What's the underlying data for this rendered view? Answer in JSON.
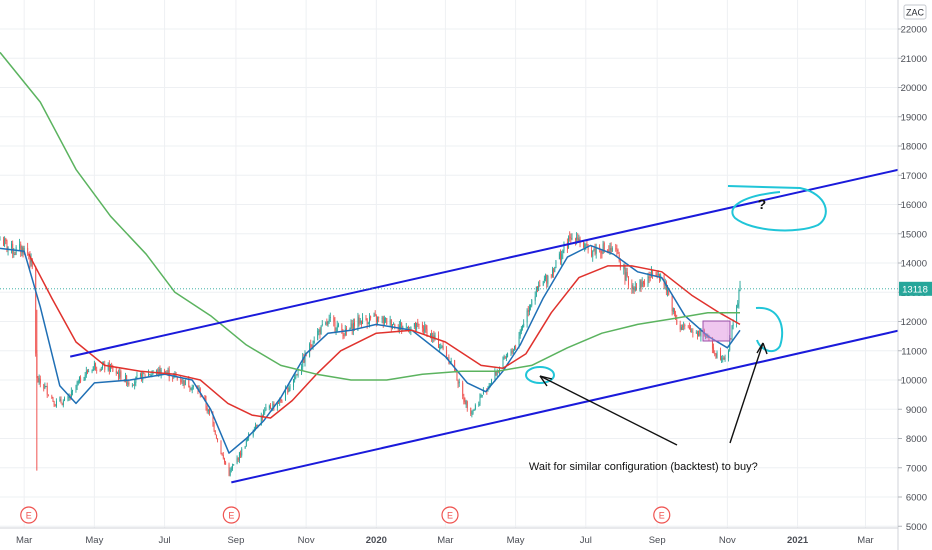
{
  "chart_data": {
    "type": "candlestick",
    "currency_badge": "ZAC",
    "last_price": 13118,
    "last_price_label": "13118",
    "ylim": [
      5000,
      23000
    ],
    "y_ticks": [
      5000,
      6000,
      7000,
      8000,
      9000,
      10000,
      11000,
      12000,
      13000,
      14000,
      15000,
      16000,
      17000,
      18000,
      19000,
      20000,
      21000,
      22000
    ],
    "x_ticks": [
      {
        "label": "Mar",
        "date": "2019-03-01",
        "bold": false
      },
      {
        "label": "May",
        "date": "2019-05-01",
        "bold": false
      },
      {
        "label": "Jul",
        "date": "2019-07-01",
        "bold": false
      },
      {
        "label": "Sep",
        "date": "2019-09-01",
        "bold": false
      },
      {
        "label": "Nov",
        "date": "2019-11-01",
        "bold": false
      },
      {
        "label": "2020",
        "date": "2020-01-01",
        "bold": true
      },
      {
        "label": "Mar",
        "date": "2020-03-01",
        "bold": false
      },
      {
        "label": "May",
        "date": "2020-05-01",
        "bold": false
      },
      {
        "label": "Jul",
        "date": "2020-07-01",
        "bold": false
      },
      {
        "label": "Sep",
        "date": "2020-09-01",
        "bold": false
      },
      {
        "label": "Nov",
        "date": "2020-11-01",
        "bold": false
      },
      {
        "label": "2021",
        "date": "2021-01-01",
        "bold": true
      },
      {
        "label": "Mar",
        "date": "2021-03-01",
        "bold": false
      }
    ],
    "price_path": [
      [
        "2019-02-08",
        14800
      ],
      [
        "2019-02-20",
        14400
      ],
      [
        "2019-02-28",
        14500
      ],
      [
        "2019-03-05",
        14300
      ],
      [
        "2019-03-08",
        13800
      ],
      [
        "2019-03-12",
        10000
      ],
      [
        "2019-03-20",
        9700
      ],
      [
        "2019-03-28",
        9200
      ],
      [
        "2019-04-08",
        9300
      ],
      [
        "2019-04-20",
        10100
      ],
      [
        "2019-05-01",
        10500
      ],
      [
        "2019-05-15",
        10400
      ],
      [
        "2019-06-01",
        9900
      ],
      [
        "2019-06-15",
        10200
      ],
      [
        "2019-07-01",
        10300
      ],
      [
        "2019-07-15",
        10000
      ],
      [
        "2019-08-01",
        9600
      ],
      [
        "2019-08-12",
        8500
      ],
      [
        "2019-08-20",
        7400
      ],
      [
        "2019-08-26",
        6800
      ],
      [
        "2019-09-05",
        7500
      ],
      [
        "2019-09-15",
        8300
      ],
      [
        "2019-09-28",
        9000
      ],
      [
        "2019-10-10",
        9300
      ],
      [
        "2019-10-25",
        10300
      ],
      [
        "2019-11-10",
        11600
      ],
      [
        "2019-11-22",
        12000
      ],
      [
        "2019-12-05",
        11600
      ],
      [
        "2019-12-15",
        12000
      ],
      [
        "2019-12-28",
        12100
      ],
      [
        "2020-01-10",
        12000
      ],
      [
        "2020-01-25",
        11800
      ],
      [
        "2020-02-10",
        11800
      ],
      [
        "2020-02-25",
        11200
      ],
      [
        "2020-03-08",
        10500
      ],
      [
        "2020-03-16",
        9400
      ],
      [
        "2020-03-24",
        8900
      ],
      [
        "2020-04-05",
        9700
      ],
      [
        "2020-04-20",
        10600
      ],
      [
        "2020-05-01",
        11200
      ],
      [
        "2020-05-15",
        12800
      ],
      [
        "2020-06-01",
        13700
      ],
      [
        "2020-06-12",
        14500
      ],
      [
        "2020-06-22",
        15000
      ],
      [
        "2020-07-02",
        14400
      ],
      [
        "2020-07-15",
        14500
      ],
      [
        "2020-07-28",
        14300
      ],
      [
        "2020-08-08",
        13200
      ],
      [
        "2020-08-20",
        13300
      ],
      [
        "2020-09-01",
        13800
      ],
      [
        "2020-09-10",
        13000
      ],
      [
        "2020-09-20",
        11800
      ],
      [
        "2020-10-01",
        11700
      ],
      [
        "2020-10-12",
        11600
      ],
      [
        "2020-10-22",
        10900
      ],
      [
        "2020-11-01",
        10800
      ],
      [
        "2020-11-06",
        12000
      ],
      [
        "2020-11-12",
        13100
      ]
    ],
    "series": [
      {
        "color": "#1f6fb5",
        "values": [
          [
            "2019-02-08",
            14500
          ],
          [
            "2019-03-01",
            14400
          ],
          [
            "2019-03-15",
            12500
          ],
          [
            "2019-04-01",
            9800
          ],
          [
            "2019-04-15",
            9200
          ],
          [
            "2019-05-01",
            9900
          ],
          [
            "2019-06-01",
            10000
          ],
          [
            "2019-07-01",
            10200
          ],
          [
            "2019-07-25",
            10000
          ],
          [
            "2019-08-10",
            9000
          ],
          [
            "2019-08-26",
            7500
          ],
          [
            "2019-09-10",
            8000
          ],
          [
            "2019-09-25",
            8600
          ],
          [
            "2019-10-10",
            9400
          ],
          [
            "2019-11-01",
            10900
          ],
          [
            "2019-11-20",
            11600
          ],
          [
            "2019-12-10",
            11700
          ],
          [
            "2020-01-01",
            11900
          ],
          [
            "2020-02-01",
            11700
          ],
          [
            "2020-03-01",
            10800
          ],
          [
            "2020-03-20",
            9900
          ],
          [
            "2020-04-05",
            9600
          ],
          [
            "2020-04-20",
            10300
          ],
          [
            "2020-05-05",
            11200
          ],
          [
            "2020-05-25",
            12800
          ],
          [
            "2020-06-15",
            14200
          ],
          [
            "2020-07-05",
            14600
          ],
          [
            "2020-07-25",
            14300
          ],
          [
            "2020-08-15",
            13700
          ],
          [
            "2020-09-05",
            13500
          ],
          [
            "2020-09-25",
            12200
          ],
          [
            "2020-10-15",
            11500
          ],
          [
            "2020-11-01",
            11100
          ],
          [
            "2020-11-12",
            11700
          ]
        ]
      },
      {
        "color": "#e0322d",
        "values": [
          [
            "2019-03-05",
            14300
          ],
          [
            "2019-03-25",
            12800
          ],
          [
            "2019-04-15",
            11300
          ],
          [
            "2019-05-10",
            10500
          ],
          [
            "2019-06-10",
            10300
          ],
          [
            "2019-07-10",
            10200
          ],
          [
            "2019-08-01",
            10000
          ],
          [
            "2019-08-25",
            9200
          ],
          [
            "2019-09-15",
            8800
          ],
          [
            "2019-10-01",
            8700
          ],
          [
            "2019-10-20",
            9300
          ],
          [
            "2019-11-10",
            10200
          ],
          [
            "2019-12-01",
            11000
          ],
          [
            "2020-01-01",
            11600
          ],
          [
            "2020-02-01",
            11700
          ],
          [
            "2020-03-01",
            11300
          ],
          [
            "2020-04-01",
            10500
          ],
          [
            "2020-04-20",
            10400
          ],
          [
            "2020-05-10",
            10900
          ],
          [
            "2020-06-01",
            12300
          ],
          [
            "2020-06-25",
            13500
          ],
          [
            "2020-07-20",
            13900
          ],
          [
            "2020-08-10",
            13900
          ],
          [
            "2020-09-05",
            13700
          ],
          [
            "2020-10-01",
            12900
          ],
          [
            "2020-10-25",
            12300
          ],
          [
            "2020-11-12",
            11900
          ]
        ]
      },
      {
        "color": "#5bb35f",
        "values": [
          [
            "2019-02-08",
            21200
          ],
          [
            "2019-03-15",
            19500
          ],
          [
            "2019-04-15",
            17200
          ],
          [
            "2019-05-15",
            15600
          ],
          [
            "2019-06-15",
            14300
          ],
          [
            "2019-07-10",
            13000
          ],
          [
            "2019-08-10",
            12200
          ],
          [
            "2019-09-10",
            11200
          ],
          [
            "2019-10-10",
            10500
          ],
          [
            "2019-11-10",
            10200
          ],
          [
            "2019-12-10",
            10000
          ],
          [
            "2020-01-10",
            10000
          ],
          [
            "2020-02-10",
            10200
          ],
          [
            "2020-03-15",
            10300
          ],
          [
            "2020-04-15",
            10300
          ],
          [
            "2020-05-15",
            10500
          ],
          [
            "2020-06-15",
            11100
          ],
          [
            "2020-07-15",
            11600
          ],
          [
            "2020-08-15",
            11900
          ],
          [
            "2020-09-15",
            12100
          ],
          [
            "2020-10-15",
            12300
          ],
          [
            "2020-11-12",
            12300
          ]
        ]
      }
    ],
    "channel_lines": [
      {
        "color": "#1a1adb",
        "points": [
          [
            "2019-04-10",
            10800
          ],
          [
            "2021-03-31",
            17200
          ]
        ]
      },
      {
        "color": "#1a1adb",
        "points": [
          [
            "2019-08-28",
            6500
          ],
          [
            "2021-03-31",
            11700
          ]
        ]
      }
    ],
    "earnings_markers": [
      {
        "label": "E",
        "date": "2019-03-05"
      },
      {
        "label": "E",
        "date": "2019-08-28"
      },
      {
        "label": "E",
        "date": "2020-03-05"
      },
      {
        "label": "E",
        "date": "2020-09-05"
      }
    ],
    "annotations": [
      {
        "text": "?",
        "date": "2020-12-01",
        "y": 15850
      },
      {
        "text": "Wait for similar configuration (backtest) to buy?",
        "date": "2020-08-20",
        "y": 7200
      }
    ]
  }
}
